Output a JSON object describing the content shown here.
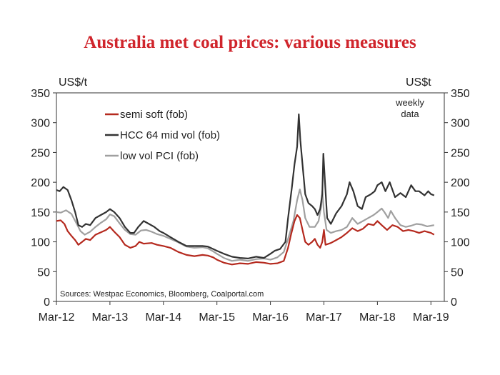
{
  "title": "Australia met coal prices: various measures",
  "chart_data": {
    "type": "line",
    "title": "Australia met coal prices: various measures",
    "ylabel_left": "US$/t",
    "ylabel_right": "US$t",
    "note_line1": "weekly",
    "note_line2": "data",
    "source": "Sources: Westpac Economics, Bloomberg, Coalportal.com",
    "xlim": [
      2012.17,
      2019.42
    ],
    "ylim": [
      0,
      350
    ],
    "yticks": [
      0,
      50,
      100,
      150,
      200,
      250,
      300,
      350
    ],
    "xtick_labels": [
      "Mar-12",
      "Mar-13",
      "Mar-14",
      "Mar-15",
      "Mar-16",
      "Mar-17",
      "Mar-18",
      "Mar-19"
    ],
    "xtick_positions": [
      2012.17,
      2013.17,
      2014.17,
      2015.17,
      2016.17,
      2017.17,
      2018.17,
      2019.17
    ],
    "legend": [
      "semi soft (fob)",
      "HCC 64 mid vol (fob)",
      "low vol PCI (fob)"
    ],
    "series": [
      {
        "name": "low vol PCI (fob)",
        "color": "#a0a0a0",
        "points": [
          [
            2012.17,
            150
          ],
          [
            2012.25,
            149
          ],
          [
            2012.35,
            153
          ],
          [
            2012.45,
            147
          ],
          [
            2012.55,
            130
          ],
          [
            2012.62,
            118
          ],
          [
            2012.7,
            112
          ],
          [
            2012.8,
            117
          ],
          [
            2012.9,
            125
          ],
          [
            2013.0,
            132
          ],
          [
            2013.1,
            138
          ],
          [
            2013.17,
            146
          ],
          [
            2013.25,
            143
          ],
          [
            2013.35,
            131
          ],
          [
            2013.45,
            120
          ],
          [
            2013.55,
            113
          ],
          [
            2013.65,
            112
          ],
          [
            2013.75,
            119
          ],
          [
            2013.85,
            120
          ],
          [
            2013.95,
            117
          ],
          [
            2014.05,
            113
          ],
          [
            2014.17,
            110
          ],
          [
            2014.3,
            105
          ],
          [
            2014.45,
            99
          ],
          [
            2014.6,
            92
          ],
          [
            2014.75,
            90
          ],
          [
            2014.9,
            91
          ],
          [
            2015.0,
            89
          ],
          [
            2015.1,
            84
          ],
          [
            2015.17,
            80
          ],
          [
            2015.3,
            73
          ],
          [
            2015.45,
            68
          ],
          [
            2015.6,
            70
          ],
          [
            2015.75,
            68
          ],
          [
            2015.9,
            71
          ],
          [
            2016.05,
            72
          ],
          [
            2016.17,
            70
          ],
          [
            2016.3,
            74
          ],
          [
            2016.42,
            83
          ],
          [
            2016.5,
            105
          ],
          [
            2016.6,
            135
          ],
          [
            2016.67,
            170
          ],
          [
            2016.72,
            188
          ],
          [
            2016.77,
            170
          ],
          [
            2016.82,
            140
          ],
          [
            2016.9,
            125
          ],
          [
            2017.0,
            125
          ],
          [
            2017.07,
            135
          ],
          [
            2017.12,
            160
          ],
          [
            2017.14,
            185
          ],
          [
            2017.17,
            150
          ],
          [
            2017.22,
            120
          ],
          [
            2017.3,
            115
          ],
          [
            2017.4,
            118
          ],
          [
            2017.5,
            120
          ],
          [
            2017.6,
            125
          ],
          [
            2017.7,
            140
          ],
          [
            2017.8,
            130
          ],
          [
            2017.9,
            135
          ],
          [
            2018.0,
            140
          ],
          [
            2018.1,
            145
          ],
          [
            2018.17,
            150
          ],
          [
            2018.25,
            156
          ],
          [
            2018.3,
            150
          ],
          [
            2018.37,
            140
          ],
          [
            2018.42,
            152
          ],
          [
            2018.5,
            140
          ],
          [
            2018.6,
            128
          ],
          [
            2018.7,
            125
          ],
          [
            2018.8,
            127
          ],
          [
            2018.9,
            130
          ],
          [
            2019.0,
            129
          ],
          [
            2019.1,
            126
          ],
          [
            2019.17,
            127
          ],
          [
            2019.23,
            128
          ]
        ]
      },
      {
        "name": "semi soft (fob)",
        "color": "#b52a1f",
        "points": [
          [
            2012.17,
            135
          ],
          [
            2012.25,
            136
          ],
          [
            2012.32,
            130
          ],
          [
            2012.38,
            118
          ],
          [
            2012.45,
            110
          ],
          [
            2012.52,
            103
          ],
          [
            2012.58,
            95
          ],
          [
            2012.65,
            100
          ],
          [
            2012.72,
            105
          ],
          [
            2012.8,
            103
          ],
          [
            2012.9,
            112
          ],
          [
            2013.0,
            116
          ],
          [
            2013.1,
            120
          ],
          [
            2013.17,
            125
          ],
          [
            2013.25,
            117
          ],
          [
            2013.35,
            108
          ],
          [
            2013.45,
            95
          ],
          [
            2013.55,
            90
          ],
          [
            2013.65,
            93
          ],
          [
            2013.72,
            100
          ],
          [
            2013.8,
            97
          ],
          [
            2013.95,
            98
          ],
          [
            2014.05,
            95
          ],
          [
            2014.17,
            93
          ],
          [
            2014.3,
            90
          ],
          [
            2014.45,
            83
          ],
          [
            2014.6,
            78
          ],
          [
            2014.75,
            76
          ],
          [
            2014.9,
            78
          ],
          [
            2015.0,
            77
          ],
          [
            2015.1,
            74
          ],
          [
            2015.17,
            70
          ],
          [
            2015.3,
            65
          ],
          [
            2015.45,
            62
          ],
          [
            2015.6,
            64
          ],
          [
            2015.75,
            63
          ],
          [
            2015.9,
            66
          ],
          [
            2016.05,
            65
          ],
          [
            2016.17,
            63
          ],
          [
            2016.3,
            64
          ],
          [
            2016.42,
            68
          ],
          [
            2016.5,
            90
          ],
          [
            2016.55,
            110
          ],
          [
            2016.62,
            135
          ],
          [
            2016.67,
            145
          ],
          [
            2016.72,
            140
          ],
          [
            2016.77,
            120
          ],
          [
            2016.82,
            100
          ],
          [
            2016.88,
            95
          ],
          [
            2016.95,
            100
          ],
          [
            2017.0,
            105
          ],
          [
            2017.05,
            95
          ],
          [
            2017.1,
            90
          ],
          [
            2017.14,
            100
          ],
          [
            2017.17,
            120
          ],
          [
            2017.2,
            95
          ],
          [
            2017.3,
            98
          ],
          [
            2017.4,
            103
          ],
          [
            2017.5,
            108
          ],
          [
            2017.6,
            115
          ],
          [
            2017.7,
            123
          ],
          [
            2017.8,
            118
          ],
          [
            2017.9,
            122
          ],
          [
            2018.0,
            130
          ],
          [
            2018.1,
            128
          ],
          [
            2018.17,
            135
          ],
          [
            2018.25,
            128
          ],
          [
            2018.35,
            120
          ],
          [
            2018.45,
            128
          ],
          [
            2018.55,
            125
          ],
          [
            2018.65,
            118
          ],
          [
            2018.75,
            120
          ],
          [
            2018.85,
            118
          ],
          [
            2018.95,
            115
          ],
          [
            2019.05,
            118
          ],
          [
            2019.17,
            115
          ],
          [
            2019.23,
            112
          ]
        ]
      },
      {
        "name": "HCC 64 mid vol (fob)",
        "color": "#333333",
        "points": [
          [
            2012.17,
            187
          ],
          [
            2012.23,
            185
          ],
          [
            2012.3,
            192
          ],
          [
            2012.38,
            187
          ],
          [
            2012.45,
            170
          ],
          [
            2012.52,
            150
          ],
          [
            2012.58,
            128
          ],
          [
            2012.65,
            125
          ],
          [
            2012.72,
            130
          ],
          [
            2012.8,
            128
          ],
          [
            2012.9,
            140
          ],
          [
            2013.0,
            145
          ],
          [
            2013.1,
            150
          ],
          [
            2013.17,
            155
          ],
          [
            2013.25,
            150
          ],
          [
            2013.35,
            140
          ],
          [
            2013.45,
            125
          ],
          [
            2013.55,
            115
          ],
          [
            2013.62,
            115
          ],
          [
            2013.7,
            125
          ],
          [
            2013.8,
            135
          ],
          [
            2013.9,
            130
          ],
          [
            2014.0,
            125
          ],
          [
            2014.1,
            118
          ],
          [
            2014.17,
            115
          ],
          [
            2014.3,
            108
          ],
          [
            2014.45,
            100
          ],
          [
            2014.6,
            93
          ],
          [
            2014.75,
            93
          ],
          [
            2014.9,
            93
          ],
          [
            2015.0,
            92
          ],
          [
            2015.1,
            88
          ],
          [
            2015.17,
            85
          ],
          [
            2015.3,
            80
          ],
          [
            2015.45,
            75
          ],
          [
            2015.6,
            73
          ],
          [
            2015.75,
            72
          ],
          [
            2015.9,
            75
          ],
          [
            2016.05,
            73
          ],
          [
            2016.17,
            80
          ],
          [
            2016.25,
            85
          ],
          [
            2016.35,
            88
          ],
          [
            2016.45,
            100
          ],
          [
            2016.5,
            140
          ],
          [
            2016.57,
            190
          ],
          [
            2016.62,
            230
          ],
          [
            2016.67,
            260
          ],
          [
            2016.7,
            314
          ],
          [
            2016.73,
            270
          ],
          [
            2016.77,
            230
          ],
          [
            2016.82,
            180
          ],
          [
            2016.88,
            165
          ],
          [
            2016.95,
            160
          ],
          [
            2017.0,
            155
          ],
          [
            2017.05,
            145
          ],
          [
            2017.1,
            155
          ],
          [
            2017.14,
            180
          ],
          [
            2017.16,
            248
          ],
          [
            2017.19,
            200
          ],
          [
            2017.23,
            140
          ],
          [
            2017.3,
            130
          ],
          [
            2017.4,
            148
          ],
          [
            2017.5,
            160
          ],
          [
            2017.6,
            180
          ],
          [
            2017.65,
            200
          ],
          [
            2017.72,
            185
          ],
          [
            2017.8,
            160
          ],
          [
            2017.88,
            155
          ],
          [
            2017.95,
            175
          ],
          [
            2018.05,
            180
          ],
          [
            2018.12,
            185
          ],
          [
            2018.17,
            195
          ],
          [
            2018.25,
            200
          ],
          [
            2018.32,
            185
          ],
          [
            2018.4,
            200
          ],
          [
            2018.5,
            175
          ],
          [
            2018.6,
            182
          ],
          [
            2018.7,
            175
          ],
          [
            2018.8,
            195
          ],
          [
            2018.88,
            185
          ],
          [
            2018.95,
            185
          ],
          [
            2019.05,
            178
          ],
          [
            2019.12,
            185
          ],
          [
            2019.17,
            180
          ],
          [
            2019.23,
            178
          ]
        ]
      }
    ]
  }
}
